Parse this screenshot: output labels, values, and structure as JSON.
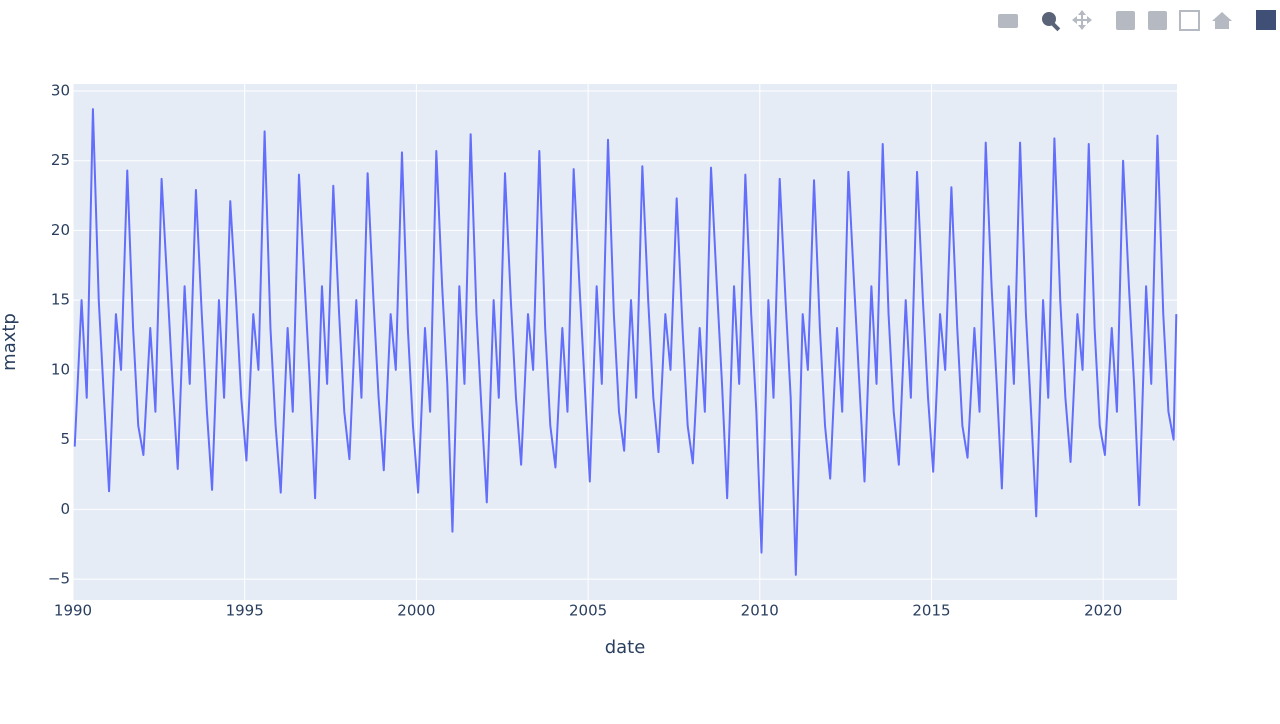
{
  "chart_data": {
    "type": "line",
    "x_label": "date",
    "y_label": "maxtp",
    "xlim": [
      1990,
      2022.15
    ],
    "ylim": [
      -6.5,
      30.5
    ],
    "xticks": [
      1990,
      1995,
      2000,
      2005,
      2010,
      2015,
      2020
    ],
    "yticks": [
      {
        "value": -5,
        "label": "−5"
      },
      0,
      5,
      10,
      15,
      20,
      25,
      30
    ],
    "grid": true,
    "background": "#e5ecf6",
    "series": [
      {
        "color": "#636efa",
        "x": [
          1990.05,
          1990.25,
          1990.4,
          1990.58,
          1990.75,
          1990.9,
          1991.05,
          1991.25,
          1991.4,
          1991.58,
          1991.75,
          1991.9,
          1992.05,
          1992.25,
          1992.4,
          1992.58,
          1992.75,
          1992.9,
          1993.05,
          1993.25,
          1993.4,
          1993.58,
          1993.75,
          1993.9,
          1994.05,
          1994.25,
          1994.4,
          1994.58,
          1994.75,
          1994.9,
          1995.05,
          1995.25,
          1995.4,
          1995.58,
          1995.75,
          1995.9,
          1996.05,
          1996.25,
          1996.4,
          1996.58,
          1996.75,
          1996.9,
          1997.05,
          1997.25,
          1997.4,
          1997.58,
          1997.75,
          1997.9,
          1998.05,
          1998.25,
          1998.4,
          1998.58,
          1998.75,
          1998.9,
          1999.05,
          1999.25,
          1999.4,
          1999.58,
          1999.75,
          1999.9,
          2000.05,
          2000.25,
          2000.4,
          2000.58,
          2000.75,
          2000.9,
          2001.05,
          2001.25,
          2001.4,
          2001.58,
          2001.75,
          2001.9,
          2002.05,
          2002.25,
          2002.4,
          2002.58,
          2002.75,
          2002.9,
          2003.05,
          2003.25,
          2003.4,
          2003.58,
          2003.75,
          2003.9,
          2004.05,
          2004.25,
          2004.4,
          2004.58,
          2004.75,
          2004.9,
          2005.05,
          2005.25,
          2005.4,
          2005.58,
          2005.75,
          2005.9,
          2006.05,
          2006.25,
          2006.4,
          2006.58,
          2006.75,
          2006.9,
          2007.05,
          2007.25,
          2007.4,
          2007.58,
          2007.75,
          2007.9,
          2008.05,
          2008.25,
          2008.4,
          2008.58,
          2008.75,
          2008.9,
          2009.05,
          2009.25,
          2009.4,
          2009.58,
          2009.75,
          2009.9,
          2010.05,
          2010.25,
          2010.4,
          2010.58,
          2010.75,
          2010.9,
          2011.05,
          2011.25,
          2011.4,
          2011.58,
          2011.75,
          2011.9,
          2012.05,
          2012.25,
          2012.4,
          2012.58,
          2012.75,
          2012.9,
          2013.05,
          2013.25,
          2013.4,
          2013.58,
          2013.75,
          2013.9,
          2014.05,
          2014.25,
          2014.4,
          2014.58,
          2014.75,
          2014.9,
          2015.05,
          2015.25,
          2015.4,
          2015.58,
          2015.75,
          2015.9,
          2016.05,
          2016.25,
          2016.4,
          2016.58,
          2016.75,
          2016.9,
          2017.05,
          2017.25,
          2017.4,
          2017.58,
          2017.75,
          2017.9,
          2018.05,
          2018.25,
          2018.4,
          2018.58,
          2018.75,
          2018.9,
          2019.05,
          2019.25,
          2019.4,
          2019.58,
          2019.75,
          2019.9,
          2020.05,
          2020.25,
          2020.4,
          2020.58,
          2020.75,
          2020.9,
          2021.05,
          2021.25,
          2021.4,
          2021.58,
          2021.75,
          2021.9,
          2022.05,
          2022.13
        ],
        "values": [
          4.5,
          15,
          8,
          28.7,
          15,
          8,
          1.3,
          14,
          10,
          24.3,
          13,
          6,
          3.9,
          13,
          7,
          23.7,
          16,
          9,
          2.9,
          16,
          9,
          22.9,
          14,
          7,
          1.4,
          15,
          8,
          22.1,
          15,
          8,
          3.5,
          14,
          10,
          27.1,
          13,
          6,
          1.2,
          13,
          7,
          24.0,
          16,
          9,
          0.8,
          16,
          9,
          23.2,
          14,
          7,
          3.6,
          15,
          8,
          24.1,
          15,
          8,
          2.8,
          14,
          10,
          25.6,
          13,
          6,
          1.2,
          13,
          7,
          25.7,
          16,
          9,
          -1.6,
          16,
          9,
          26.9,
          14,
          7,
          0.5,
          15,
          8,
          24.1,
          15,
          8,
          3.2,
          14,
          10,
          25.7,
          13,
          6,
          3.0,
          13,
          7,
          24.4,
          16,
          9,
          2.0,
          16,
          9,
          26.5,
          14,
          7,
          4.2,
          15,
          8,
          24.6,
          15,
          8,
          4.1,
          14,
          10,
          22.3,
          13,
          6,
          3.3,
          13,
          7,
          24.5,
          16,
          9,
          0.8,
          16,
          9,
          24.0,
          14,
          7,
          -3.1,
          15,
          8,
          23.7,
          15,
          8,
          -4.7,
          14,
          10,
          23.6,
          13,
          6,
          2.2,
          13,
          7,
          24.2,
          16,
          9,
          2.0,
          16,
          9,
          26.2,
          14,
          7,
          3.2,
          15,
          8,
          24.2,
          15,
          8,
          2.7,
          14,
          10,
          23.1,
          13,
          6,
          3.7,
          13,
          7,
          26.3,
          16,
          9,
          1.5,
          16,
          9,
          26.3,
          14,
          7,
          -0.5,
          15,
          8,
          26.6,
          15,
          8,
          3.4,
          14,
          10,
          26.2,
          13,
          6,
          3.9,
          13,
          7,
          25.0,
          16,
          9,
          0.3,
          16,
          9,
          26.8,
          14,
          7,
          5,
          14
        ]
      }
    ]
  }
}
